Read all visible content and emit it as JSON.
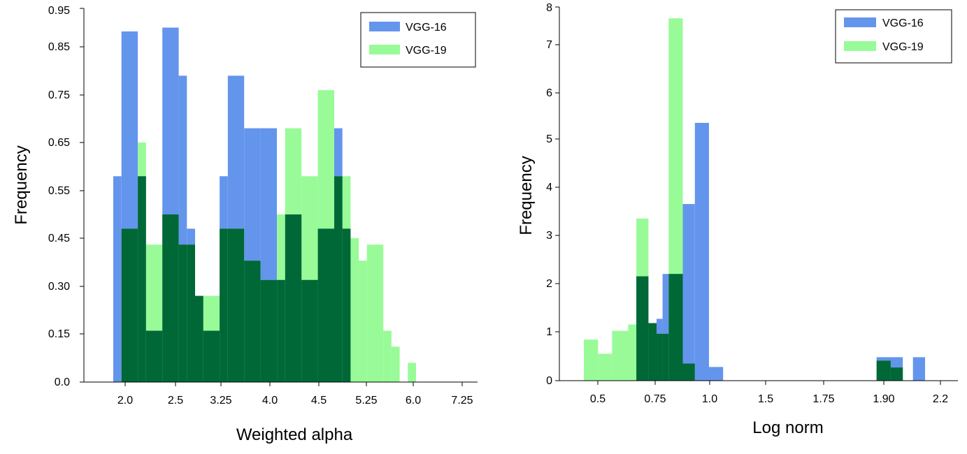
{
  "chart_data": [
    {
      "type": "bar",
      "subtype": "overlapping-histogram",
      "xlabel": "Weighted alpha",
      "ylabel": "Frequency",
      "xticks": [
        "2.0",
        "2.5",
        "3.25",
        "4.0",
        "4.5",
        "5.25",
        "6.0",
        "7.25"
      ],
      "yticks": [
        "0.0",
        "0.15",
        "0.30",
        "0.45",
        "0.55",
        "0.65",
        "0.75",
        "0.85",
        "0.95"
      ],
      "ylim": [
        0,
        0.95
      ],
      "legend": {
        "position": "top-right",
        "entries": [
          "VGG-16",
          "VGG-19"
        ]
      },
      "overlap_color": "#006837",
      "series": [
        {
          "name": "VGG-16",
          "color": "#6495ED",
          "bins": [
            {
              "x0": 1.8,
              "x1": 1.9,
              "value": 0.58
            },
            {
              "x0": 1.9,
              "x1": 2.1,
              "value": 0.89
            },
            {
              "x0": 2.1,
              "x1": 2.2,
              "value": 0.58
            },
            {
              "x0": 2.2,
              "x1": 2.4,
              "value": 0.16
            },
            {
              "x0": 2.4,
              "x1": 2.6,
              "value": 0.9
            },
            {
              "x0": 2.6,
              "x1": 2.7,
              "value": 0.79
            },
            {
              "x0": 2.7,
              "x1": 2.8,
              "value": 0.47
            },
            {
              "x0": 2.8,
              "x1": 2.9,
              "value": 0.27
            },
            {
              "x0": 2.9,
              "x1": 3.1,
              "value": 0.16
            },
            {
              "x0": 3.1,
              "x1": 3.2,
              "value": 0.58
            },
            {
              "x0": 3.2,
              "x1": 3.4,
              "value": 0.79
            },
            {
              "x0": 3.4,
              "x1": 3.6,
              "value": 0.68
            },
            {
              "x0": 3.6,
              "x1": 3.8,
              "value": 0.68
            },
            {
              "x0": 3.8,
              "x1": 3.9,
              "value": 0.32
            },
            {
              "x0": 3.9,
              "x1": 4.1,
              "value": 0.5
            },
            {
              "x0": 4.1,
              "x1": 4.3,
              "value": 0.32
            },
            {
              "x0": 4.3,
              "x1": 4.5,
              "value": 0.47
            },
            {
              "x0": 4.5,
              "x1": 4.6,
              "value": 0.68
            },
            {
              "x0": 4.6,
              "x1": 4.7,
              "value": 0.47
            }
          ]
        },
        {
          "name": "VGG-19",
          "color": "#98FB98",
          "bins": [
            {
              "x0": 1.9,
              "x1": 2.1,
              "value": 0.47
            },
            {
              "x0": 2.1,
              "x1": 2.2,
              "value": 0.65
            },
            {
              "x0": 2.2,
              "x1": 2.4,
              "value": 0.43
            },
            {
              "x0": 2.4,
              "x1": 2.6,
              "value": 0.5
            },
            {
              "x0": 2.6,
              "x1": 2.8,
              "value": 0.43
            },
            {
              "x0": 2.8,
              "x1": 2.9,
              "value": 0.27
            },
            {
              "x0": 2.9,
              "x1": 3.1,
              "value": 0.27
            },
            {
              "x0": 3.1,
              "x1": 3.2,
              "value": 0.47
            },
            {
              "x0": 3.2,
              "x1": 3.4,
              "value": 0.47
            },
            {
              "x0": 3.4,
              "x1": 3.6,
              "value": 0.38
            },
            {
              "x0": 3.6,
              "x1": 3.8,
              "value": 0.32
            },
            {
              "x0": 3.8,
              "x1": 3.9,
              "value": 0.5
            },
            {
              "x0": 3.9,
              "x1": 4.1,
              "value": 0.68
            },
            {
              "x0": 4.1,
              "x1": 4.3,
              "value": 0.58
            },
            {
              "x0": 4.3,
              "x1": 4.5,
              "value": 0.76
            },
            {
              "x0": 4.5,
              "x1": 4.6,
              "value": 0.58
            },
            {
              "x0": 4.6,
              "x1": 4.7,
              "value": 0.58
            },
            {
              "x0": 4.7,
              "x1": 4.8,
              "value": 0.45
            },
            {
              "x0": 4.8,
              "x1": 4.9,
              "value": 0.38
            },
            {
              "x0": 4.9,
              "x1": 5.1,
              "value": 0.43
            },
            {
              "x0": 5.1,
              "x1": 5.2,
              "value": 0.16
            },
            {
              "x0": 5.2,
              "x1": 5.3,
              "value": 0.11
            },
            {
              "x0": 5.4,
              "x1": 5.5,
              "value": 0.06
            }
          ]
        }
      ]
    },
    {
      "type": "bar",
      "subtype": "overlapping-histogram",
      "xlabel": "Log norm",
      "ylabel": "Frequency",
      "xticks": [
        "0.5",
        "0.75",
        "1.0",
        "1.5",
        "1.75",
        "1.90",
        "2.2"
      ],
      "yticks": [
        "0",
        "1",
        "2",
        "3",
        "4",
        "5",
        "6",
        "7",
        "8"
      ],
      "ylim": [
        0,
        8
      ],
      "legend": {
        "position": "top-right",
        "entries": [
          "VGG-16",
          "VGG-19"
        ]
      },
      "overlap_color": "#006837",
      "series": [
        {
          "name": "VGG-16",
          "color": "#6495ED",
          "bins": [
            {
              "x0": 0.69,
              "x1": 0.75,
              "value": 2.15
            },
            {
              "x0": 0.75,
              "x1": 0.79,
              "value": 1.18
            },
            {
              "x0": 0.79,
              "x1": 0.82,
              "value": 1.27
            },
            {
              "x0": 0.82,
              "x1": 0.85,
              "value": 2.2
            },
            {
              "x0": 0.85,
              "x1": 0.92,
              "value": 2.2
            },
            {
              "x0": 0.92,
              "x1": 0.98,
              "value": 3.65
            },
            {
              "x0": 0.98,
              "x1": 1.05,
              "value": 5.35
            },
            {
              "x0": 1.05,
              "x1": 1.12,
              "value": 0.28
            },
            {
              "x0": 1.88,
              "x1": 2.01,
              "value": 0.48
            },
            {
              "x0": 2.06,
              "x1": 2.12,
              "value": 0.48
            }
          ]
        },
        {
          "name": "VGG-19",
          "color": "#98FB98",
          "bins": [
            {
              "x0": 0.43,
              "x1": 0.5,
              "value": 0.84
            },
            {
              "x0": 0.5,
              "x1": 0.57,
              "value": 0.55
            },
            {
              "x0": 0.57,
              "x1": 0.65,
              "value": 1.02
            },
            {
              "x0": 0.65,
              "x1": 0.69,
              "value": 1.15
            },
            {
              "x0": 0.69,
              "x1": 0.75,
              "value": 3.35
            },
            {
              "x0": 0.75,
              "x1": 0.79,
              "value": 1.18
            },
            {
              "x0": 0.79,
              "x1": 0.85,
              "value": 0.96
            },
            {
              "x0": 0.85,
              "x1": 0.92,
              "value": 7.7
            },
            {
              "x0": 0.92,
              "x1": 0.98,
              "value": 0.35
            },
            {
              "x0": 1.88,
              "x1": 1.95,
              "value": 0.41
            },
            {
              "x0": 1.95,
              "x1": 2.01,
              "value": 0.27
            }
          ]
        }
      ]
    }
  ]
}
